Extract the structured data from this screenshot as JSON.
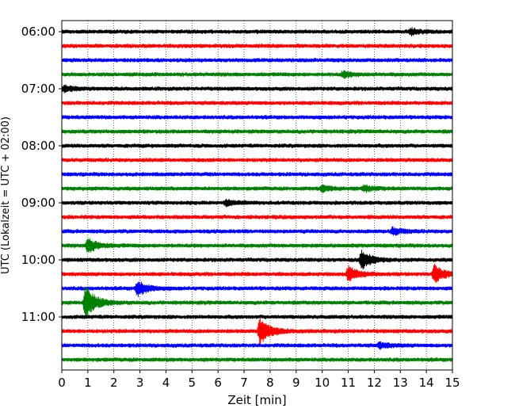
{
  "chart_data": {
    "type": "line",
    "xlabel": "Zeit  [min]",
    "ylabel": "UTC (Lokalzeit = UTC + 02:00)",
    "xlim": [
      0,
      15
    ],
    "x_ticks": [
      0,
      1,
      2,
      3,
      4,
      5,
      6,
      7,
      8,
      9,
      10,
      11,
      12,
      13,
      14,
      15
    ],
    "grid": "vertical-dotted",
    "y_ticks": [
      "06:00",
      "07:00",
      "08:00",
      "09:00",
      "10:00",
      "11:00"
    ],
    "trace_interval_minutes": 15,
    "colors": [
      "#000000",
      "#ff0000",
      "#0000ff",
      "#008000"
    ],
    "traces": [
      {
        "start": "06:00",
        "color": "#000000",
        "events": [
          {
            "t": 13.4,
            "amp": 0.4
          }
        ]
      },
      {
        "start": "06:15",
        "color": "#ff0000",
        "events": []
      },
      {
        "start": "06:30",
        "color": "#0000ff",
        "events": []
      },
      {
        "start": "06:45",
        "color": "#008000",
        "events": [
          {
            "t": 10.8,
            "amp": 0.4
          }
        ]
      },
      {
        "start": "07:00",
        "color": "#000000",
        "events": [
          {
            "t": 0.1,
            "amp": 0.4
          }
        ]
      },
      {
        "start": "07:15",
        "color": "#ff0000",
        "events": []
      },
      {
        "start": "07:30",
        "color": "#0000ff",
        "events": []
      },
      {
        "start": "07:45",
        "color": "#008000",
        "events": []
      },
      {
        "start": "08:00",
        "color": "#000000",
        "events": []
      },
      {
        "start": "08:15",
        "color": "#ff0000",
        "events": []
      },
      {
        "start": "08:30",
        "color": "#0000ff",
        "events": []
      },
      {
        "start": "08:45",
        "color": "#008000",
        "events": [
          {
            "t": 10.0,
            "amp": 0.4
          },
          {
            "t": 11.6,
            "amp": 0.4
          }
        ]
      },
      {
        "start": "09:00",
        "color": "#000000",
        "events": [
          {
            "t": 6.3,
            "amp": 0.4
          }
        ]
      },
      {
        "start": "09:15",
        "color": "#ff0000",
        "events": []
      },
      {
        "start": "09:30",
        "color": "#0000ff",
        "events": [
          {
            "t": 12.7,
            "amp": 0.5
          }
        ]
      },
      {
        "start": "09:45",
        "color": "#008000",
        "events": [
          {
            "t": 1.0,
            "amp": 1.0
          }
        ]
      },
      {
        "start": "10:00",
        "color": "#000000",
        "events": [
          {
            "t": 11.5,
            "amp": 1.3
          }
        ]
      },
      {
        "start": "10:15",
        "color": "#ff0000",
        "events": [
          {
            "t": 11.0,
            "amp": 1.1
          },
          {
            "t": 14.3,
            "amp": 1.3
          }
        ]
      },
      {
        "start": "10:30",
        "color": "#0000ff",
        "events": [
          {
            "t": 2.9,
            "amp": 1.1
          }
        ]
      },
      {
        "start": "10:45",
        "color": "#008000",
        "events": [
          {
            "t": 0.9,
            "amp": 2.4
          }
        ]
      },
      {
        "start": "11:00",
        "color": "#000000",
        "events": []
      },
      {
        "start": "11:15",
        "color": "#ff0000",
        "events": [
          {
            "t": 7.6,
            "amp": 1.9
          }
        ]
      },
      {
        "start": "11:30",
        "color": "#0000ff",
        "events": [
          {
            "t": 12.2,
            "amp": 0.4
          }
        ]
      },
      {
        "start": "11:45",
        "color": "#008000",
        "events": []
      }
    ]
  }
}
